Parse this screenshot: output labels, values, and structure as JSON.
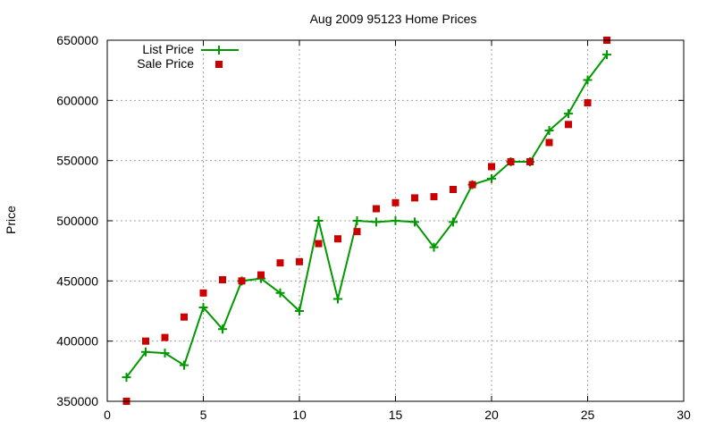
{
  "chart_data": {
    "type": "line",
    "title": "Aug 2009 95123 Home Prices",
    "xlabel": "",
    "ylabel": "Price",
    "xlim": [
      0,
      30
    ],
    "ylim": [
      350000,
      650000
    ],
    "x_ticks": [
      "0",
      "5",
      "10",
      "15",
      "20",
      "25",
      "30"
    ],
    "y_ticks": [
      "350000",
      "400000",
      "450000",
      "500000",
      "550000",
      "600000",
      "650000"
    ],
    "grid": true,
    "legend_position": "top-left",
    "x": [
      1,
      2,
      3,
      4,
      5,
      6,
      7,
      8,
      9,
      10,
      11,
      12,
      13,
      14,
      15,
      16,
      17,
      18,
      19,
      20,
      21,
      22,
      23,
      24,
      25,
      26
    ],
    "series": [
      {
        "name": "List Price",
        "style": "line-with-plus-markers",
        "color": "#009900",
        "values": [
          370000,
          391000,
          390000,
          380000,
          428000,
          410000,
          450000,
          452000,
          440000,
          425000,
          500000,
          435000,
          500000,
          499000,
          500000,
          499000,
          478000,
          499000,
          530000,
          535000,
          549000,
          549000,
          575000,
          589000,
          617000,
          638000
        ]
      },
      {
        "name": "Sale Price",
        "style": "square-markers",
        "color": "#cc0000",
        "values": [
          350000,
          400000,
          403000,
          420000,
          440000,
          451000,
          450000,
          455000,
          465000,
          466000,
          481000,
          485000,
          491000,
          510000,
          515000,
          519000,
          520000,
          526000,
          530000,
          545000,
          549000,
          549000,
          565000,
          580000,
          598000,
          650000
        ]
      }
    ]
  }
}
